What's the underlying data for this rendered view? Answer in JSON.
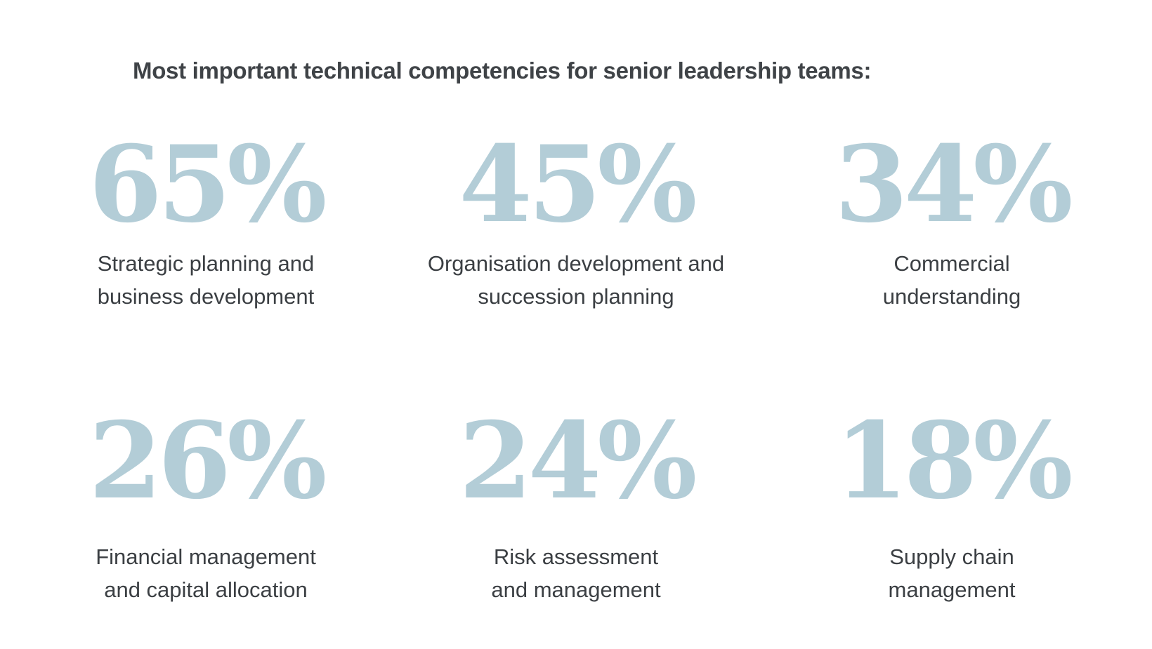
{
  "title": "Most important technical competencies for senior leadership teams:",
  "accent_color": "#b3cdd7",
  "text_color": "#3b3f43",
  "stats": [
    {
      "value": "65%",
      "percent": 65,
      "label_lines": [
        "Strategic planning and",
        "business development"
      ]
    },
    {
      "value": "45%",
      "percent": 45,
      "label_lines": [
        "Organisation development and",
        "succession planning"
      ]
    },
    {
      "value": "34%",
      "percent": 34,
      "label_lines": [
        "Commercial",
        "understanding"
      ]
    },
    {
      "value": "26%",
      "percent": 26,
      "label_lines": [
        "Financial management",
        "and capital allocation"
      ]
    },
    {
      "value": "24%",
      "percent": 24,
      "label_lines": [
        "Risk assessment",
        "and management"
      ]
    },
    {
      "value": "18%",
      "percent": 18,
      "label_lines": [
        "Supply chain",
        "management"
      ]
    }
  ]
}
